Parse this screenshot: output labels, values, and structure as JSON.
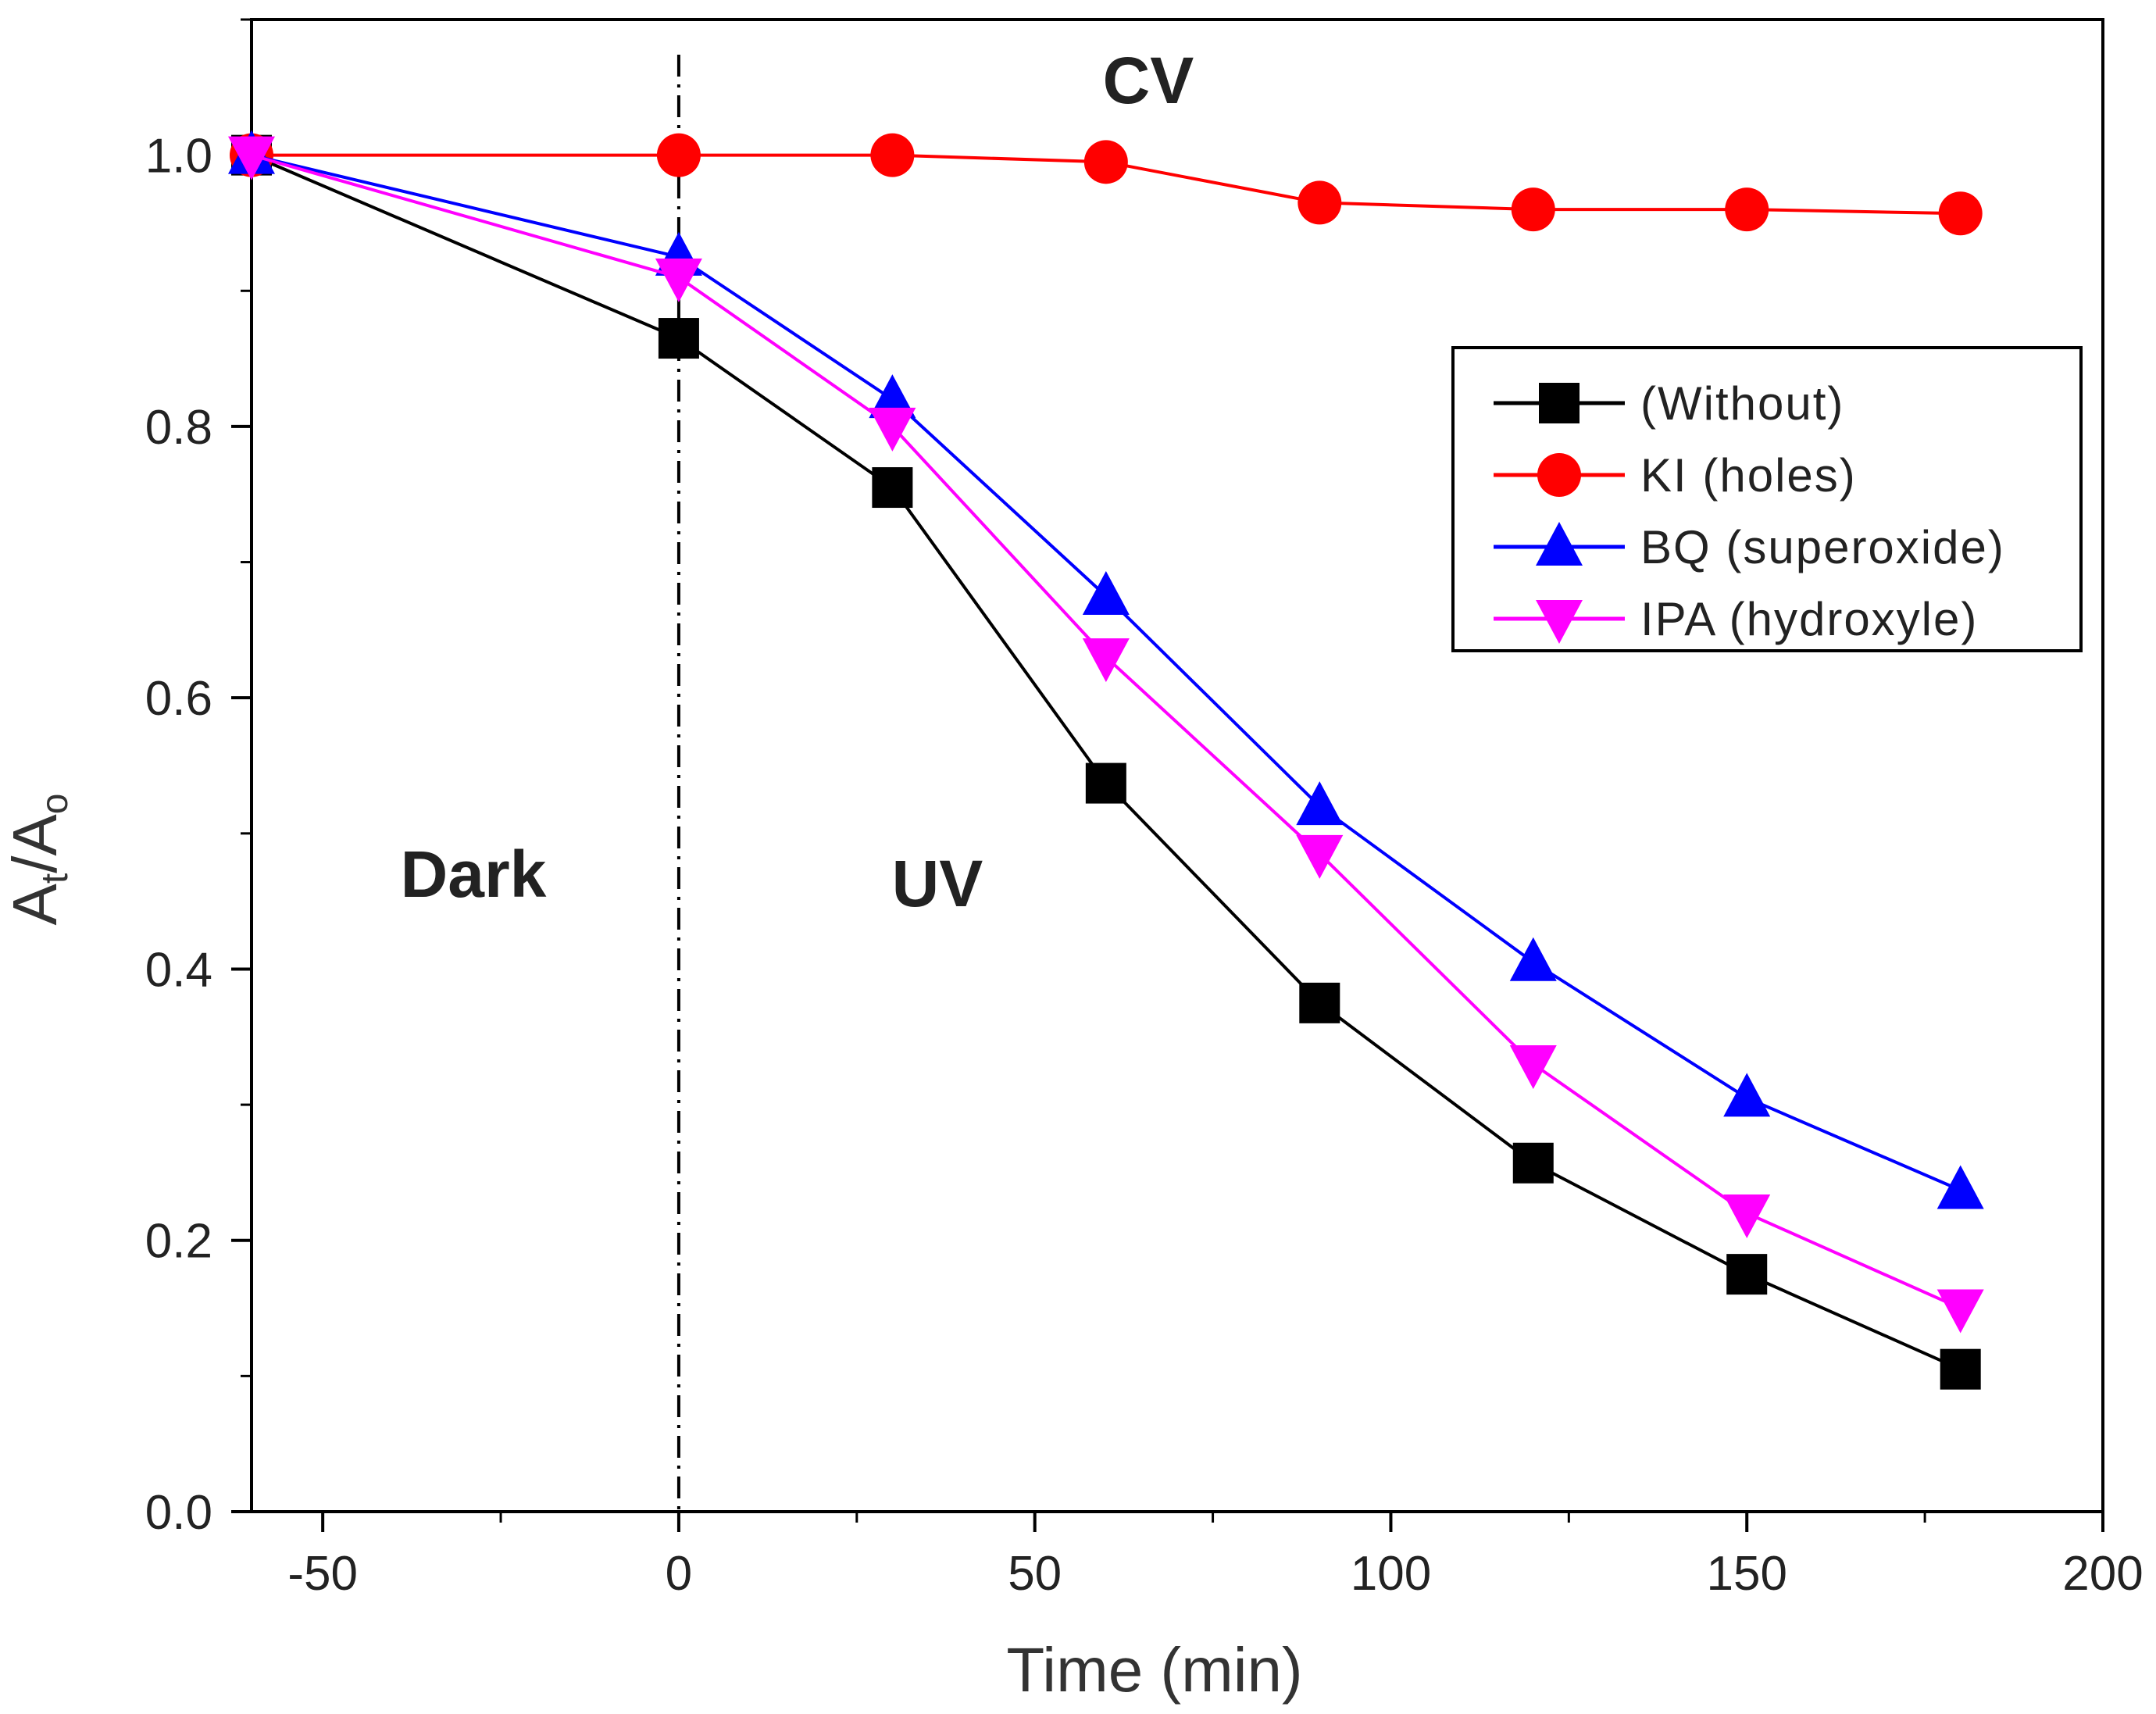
{
  "chart_data": {
    "type": "line",
    "title": "",
    "xlabel": "Time (min)",
    "ylabel": "A",
    "ylabel_sub1": "t",
    "ylabel_sub2": "o",
    "xlim": [
      -60,
      200
    ],
    "ylim": [
      0.0,
      1.1
    ],
    "grid": false,
    "legend_position": "right-upper",
    "x_ticks": [
      -50,
      0,
      50,
      100,
      150,
      200
    ],
    "x_tick_labels": [
      "-50",
      "0",
      "50",
      "100",
      "150",
      "200"
    ],
    "y_ticks": [
      0.0,
      0.2,
      0.4,
      0.6,
      0.8,
      1.0
    ],
    "y_tick_labels": [
      "0.0",
      "0.2",
      "0.4",
      "0.6",
      "0.8",
      "1.0"
    ],
    "x": [
      -60,
      0,
      30,
      60,
      90,
      120,
      150,
      180
    ],
    "divider_x": 0,
    "annotations": {
      "cv": "CV",
      "dark": "Dark",
      "uv": "UV"
    },
    "series": [
      {
        "name": "(Without)",
        "color": "#000000",
        "marker": "square",
        "values": [
          1.0,
          0.865,
          0.755,
          0.537,
          0.375,
          0.257,
          0.175,
          0.105
        ]
      },
      {
        "name": "KI (holes)",
        "color": "#ff0000",
        "marker": "circle",
        "values": [
          1.0,
          1.0,
          1.0,
          0.995,
          0.965,
          0.96,
          0.96,
          0.957
        ]
      },
      {
        "name": "BQ (superoxide)",
        "color": "#0000ff",
        "marker": "triangle-up",
        "values": [
          1.0,
          0.925,
          0.82,
          0.675,
          0.52,
          0.405,
          0.305,
          0.237
        ]
      },
      {
        "name": "IPA (hydroxyle)",
        "color": "#ff00ff",
        "marker": "triangle-down",
        "values": [
          1.0,
          0.91,
          0.8,
          0.63,
          0.485,
          0.33,
          0.22,
          0.15
        ]
      }
    ]
  }
}
